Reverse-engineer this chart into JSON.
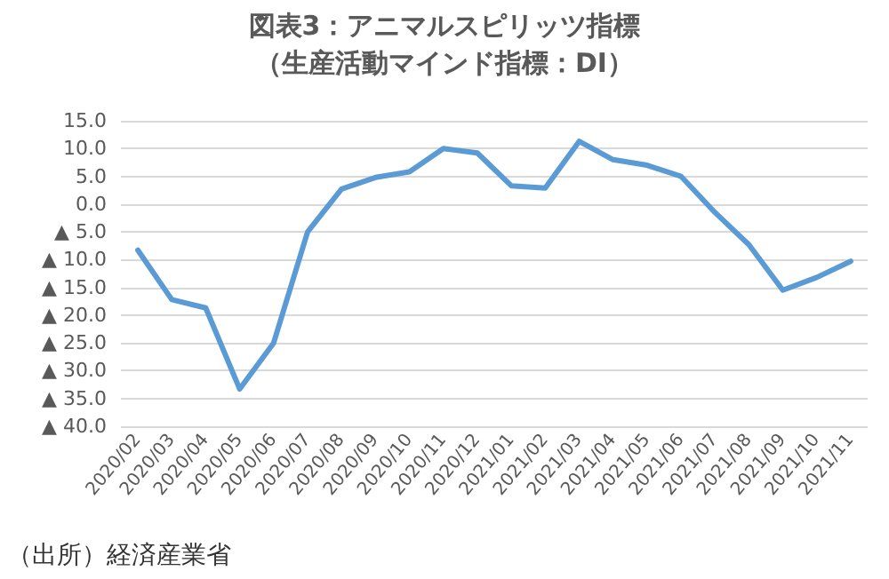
{
  "chart_data": {
    "type": "line",
    "title": "図表3：アニマルスピリッツ指標",
    "subtitle": "（生産活動マインド指標：DI）",
    "categories": [
      "2020/02",
      "2020/03",
      "2020/04",
      "2020/05",
      "2020/06",
      "2020/07",
      "2020/08",
      "2020/09",
      "2020/10",
      "2020/11",
      "2020/12",
      "2021/01",
      "2021/02",
      "2021/03",
      "2021/04",
      "2021/05",
      "2021/06",
      "2021/07",
      "2021/08",
      "2021/09",
      "2021/10",
      "2021/11"
    ],
    "series": [
      {
        "color": "#5b9bd5",
        "values": [
          -8.3,
          -17.2,
          -18.7,
          -33.3,
          -25.0,
          -5.0,
          2.7,
          4.8,
          5.8,
          10.0,
          9.2,
          3.3,
          2.9,
          11.3,
          8.0,
          7.0,
          5.0,
          -1.5,
          -7.3,
          -15.5,
          -13.2,
          -10.3
        ]
      }
    ],
    "ylim": [
      -40,
      15
    ],
    "yticks": [
      {
        "value": -40,
        "label": "▲ 40.0"
      },
      {
        "value": -35,
        "label": "▲ 35.0"
      },
      {
        "value": -30,
        "label": "▲ 30.0"
      },
      {
        "value": -25,
        "label": "▲ 25.0"
      },
      {
        "value": -20,
        "label": "▲ 20.0"
      },
      {
        "value": -15,
        "label": "▲ 15.0"
      },
      {
        "value": -10,
        "label": "▲ 10.0"
      },
      {
        "value": -5,
        "label": "▲ 5.0"
      },
      {
        "value": 0,
        "label": "0.0"
      },
      {
        "value": 5,
        "label": "5.0"
      },
      {
        "value": 10,
        "label": "10.0"
      },
      {
        "value": 15,
        "label": "15.0"
      }
    ],
    "grid": "y",
    "marker": "none",
    "line_style": "solid",
    "annotations": [
      "（出所）経済産業省"
    ]
  }
}
